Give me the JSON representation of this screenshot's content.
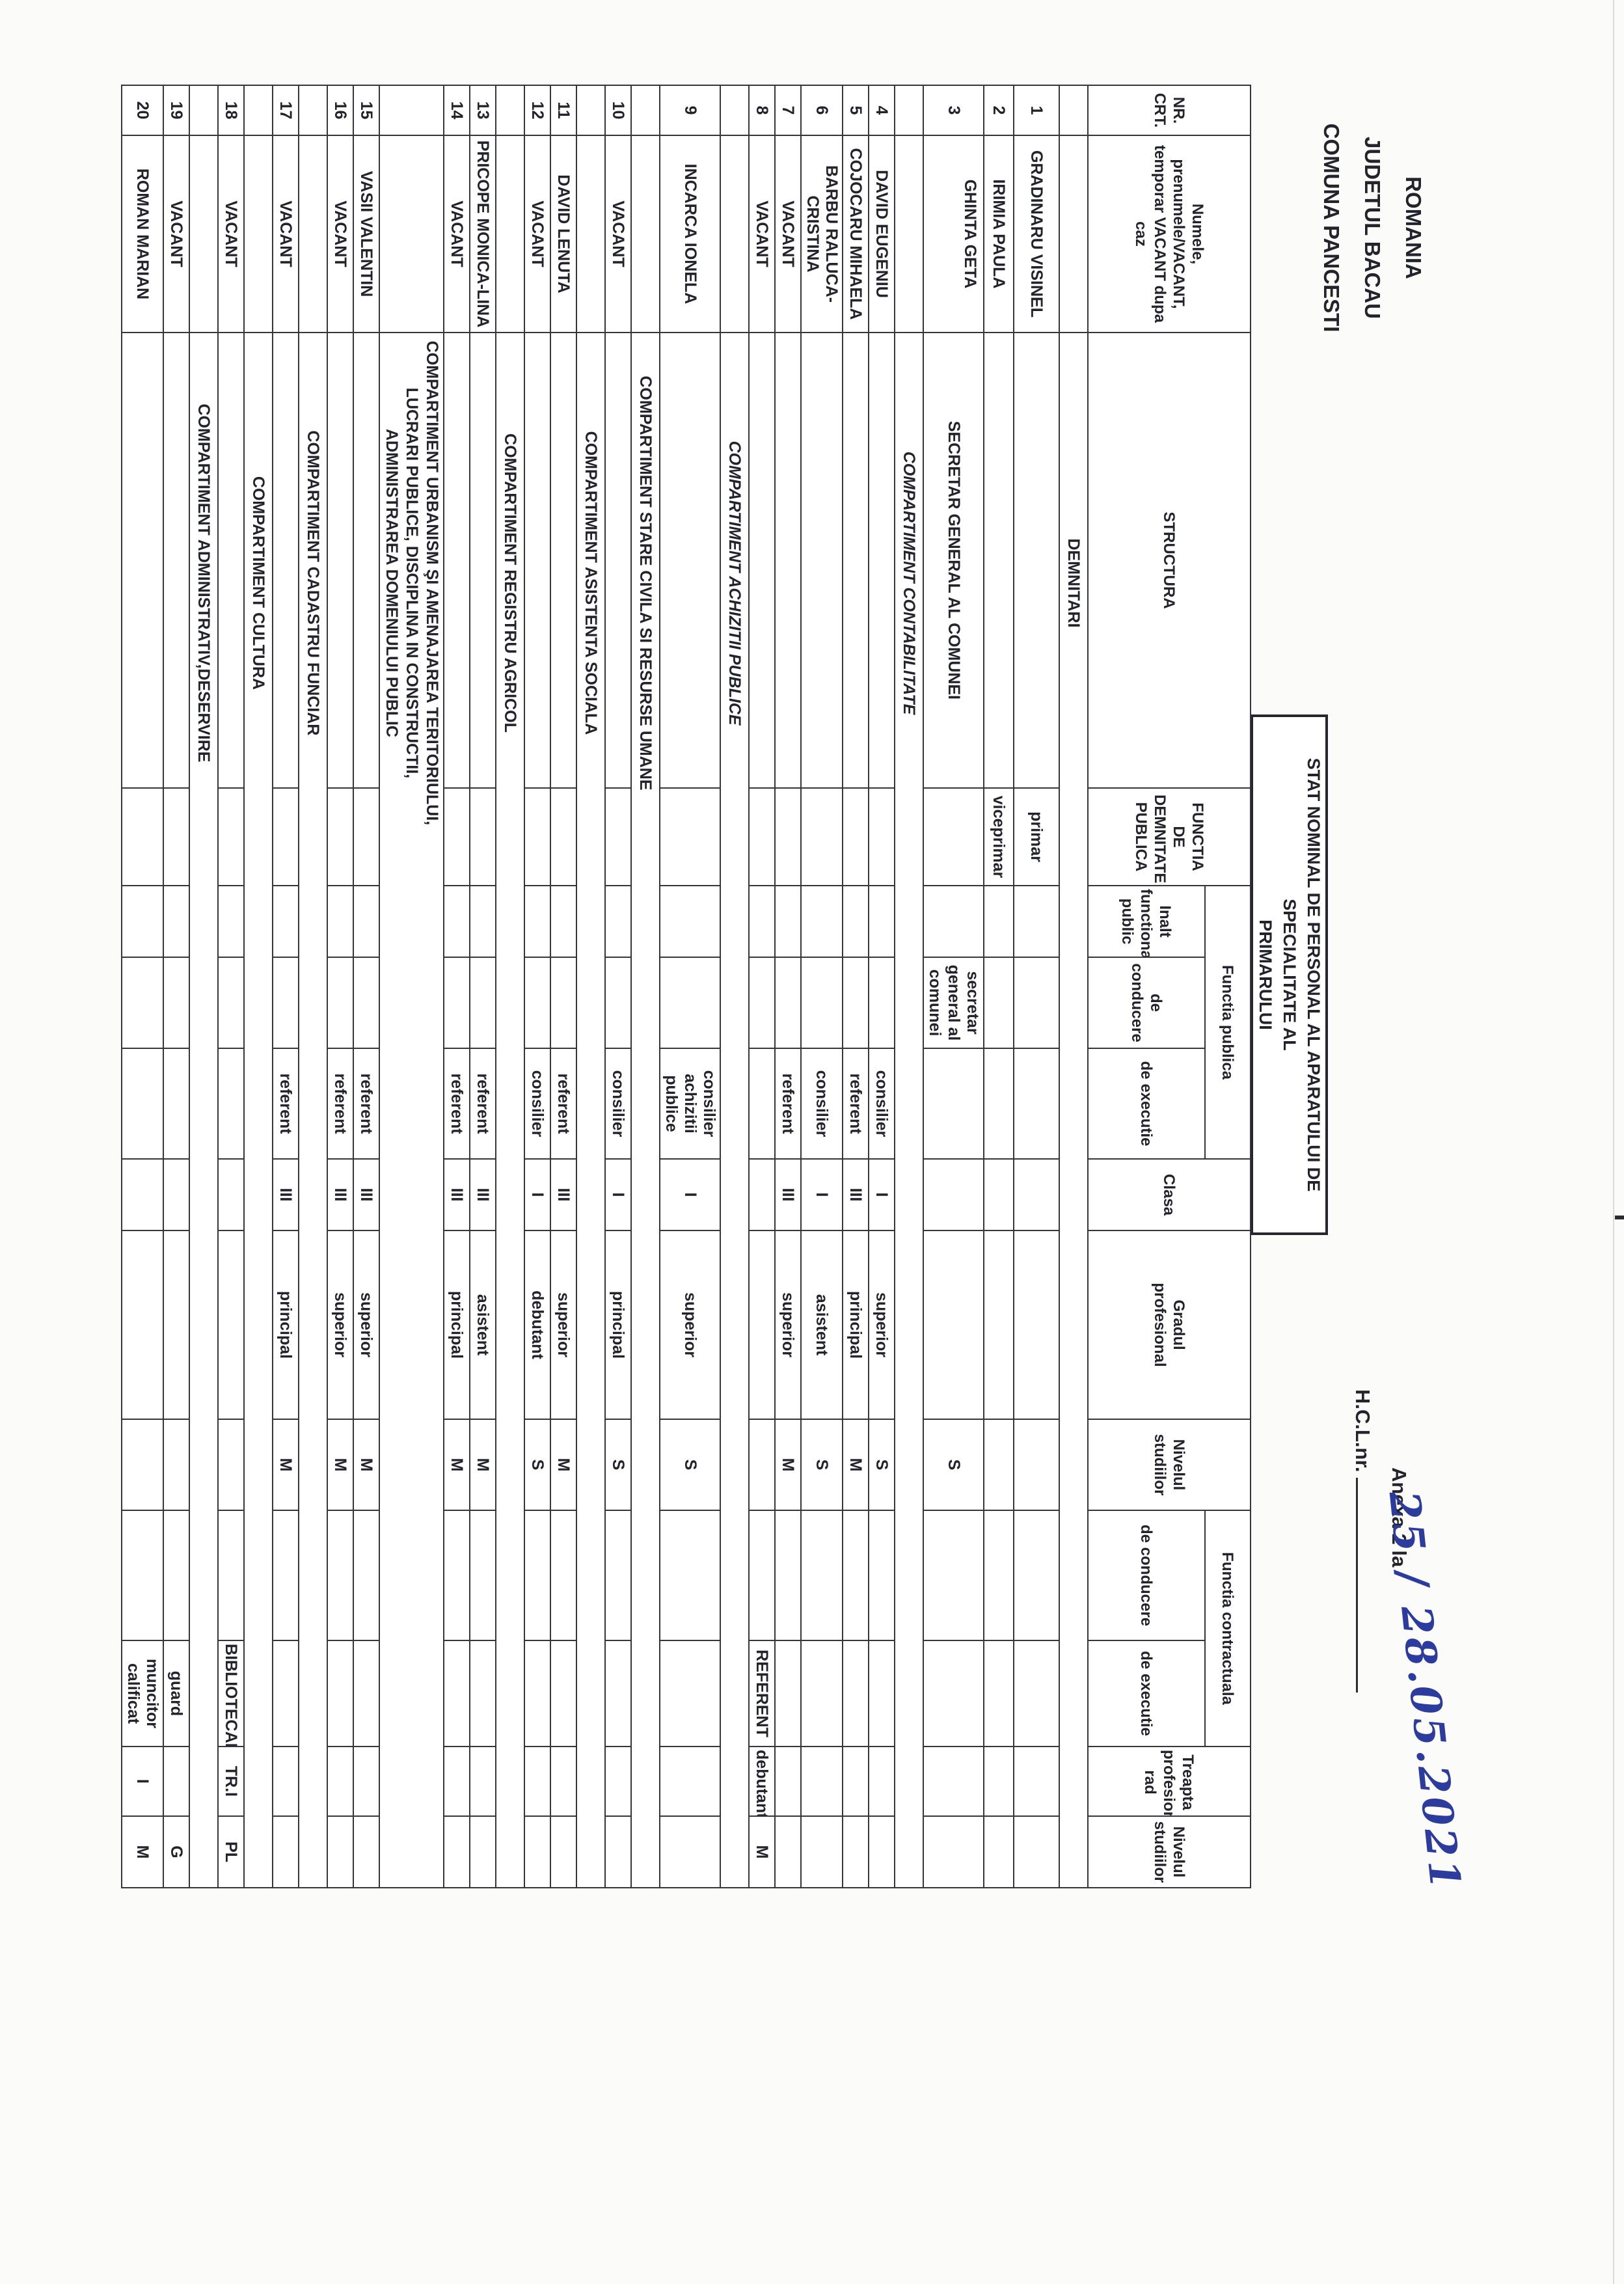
{
  "heading": {
    "country": "ROMANIA",
    "county": "JUDETUL BACAU",
    "commune": "COMUNA PANCESTI"
  },
  "annex": {
    "line1": "Anexa 2 la",
    "line2_printed": "H.C.L.nr.",
    "handwritten": "25 / 28.05.2021",
    "ink_color": "#2c3b9e"
  },
  "title": {
    "line1": "STAT NOMINAL DE PERSONAL AL APARATULUI DE SPECIALITATE AL",
    "line2": "PRIMARULUI"
  },
  "table": {
    "headers": {
      "nr": "NR.\nCRT.",
      "nume": "Numele, prenumele/VACANT, temporar VACANT dupa caz",
      "structura": "STRUCTURA",
      "demnitate": "FUNCTIA DE DEMNITATE PUBLICA",
      "fp_group": "Functia publica",
      "fp_inalt": "Inalt functionar public",
      "fp_conducere": "de conducere",
      "fp_executie": "de executie",
      "clasa": "Clasa",
      "grad": "Gradul profesional",
      "nivel": "Nivelul studiilor",
      "fc_group": "Functia contractuala",
      "fc_conducere": "de conducere",
      "fc_executie": "de executie",
      "treapta": "Treapta profesionala/g rad",
      "fc_nivel": "Nivelul studiilor"
    },
    "rows": [
      {
        "type": "section",
        "label": "DEMNITARI",
        "italic": false
      },
      {
        "type": "person",
        "nr": "1",
        "name": "GRADINARU VISINEL",
        "demnitate": "primar"
      },
      {
        "type": "person",
        "nr": "2",
        "name": "IRIMIA PAULA",
        "demnitate": "viceprimar"
      },
      {
        "type": "person",
        "nr": "3",
        "name": "GHINTA GETA",
        "structura": "SECRETAR GENERAL AL COMUNEI",
        "fp_conducere": "secretar general al comunei",
        "nivel": "S",
        "tall": true
      },
      {
        "type": "section",
        "label": "COMPARTIMENT CONTABILITATE",
        "italic": true
      },
      {
        "type": "person",
        "nr": "4",
        "name": "DAVID EUGENIU",
        "fp_executie": "consilier",
        "clasa": "I",
        "grad": "superior",
        "nivel": "S"
      },
      {
        "type": "person",
        "nr": "5",
        "name": "COJOCARU MIHAELA",
        "fp_executie": "referent",
        "clasa": "III",
        "grad": "principal",
        "nivel": "M"
      },
      {
        "type": "person",
        "nr": "6",
        "name": "BARBU RALUCA-CRISTINA",
        "fp_executie": "consilier",
        "clasa": "I",
        "grad": "asistent",
        "nivel": "S"
      },
      {
        "type": "person",
        "nr": "7",
        "name": "VACANT",
        "fp_executie": "referent",
        "clasa": "III",
        "grad": "superior",
        "nivel": "M"
      },
      {
        "type": "person",
        "nr": "8",
        "name": "VACANT",
        "fc_executie": "REFERENT",
        "treapta": "debutant",
        "fc_nivel": "M"
      },
      {
        "type": "section",
        "label": "COMPARTIMENT ACHIZITII PUBLICE",
        "italic": true
      },
      {
        "type": "person",
        "nr": "9",
        "name": "INCARCA IONELA",
        "fp_executie": "consilier achizitii publice",
        "clasa": "I",
        "grad": "superior",
        "nivel": "S"
      },
      {
        "type": "section",
        "label": "COMPARTIMENT STARE CIVILA SI RESURSE UMANE"
      },
      {
        "type": "person",
        "nr": "10",
        "name": "VACANT",
        "fp_executie": "consilier",
        "clasa": "I",
        "grad": "principal",
        "nivel": "S"
      },
      {
        "type": "section",
        "label": "COMPARTIMENT ASISTENTA SOCIALA"
      },
      {
        "type": "person",
        "nr": "11",
        "name": "DAVID LENUTA",
        "fp_executie": "referent",
        "clasa": "III",
        "grad": "superior",
        "nivel": "M"
      },
      {
        "type": "person",
        "nr": "12",
        "name": "VACANT",
        "fp_executie": "consilier",
        "clasa": "I",
        "grad": "debutant",
        "nivel": "S"
      },
      {
        "type": "section",
        "label": "COMPARTIMENT REGISTRU AGRICOL"
      },
      {
        "type": "person",
        "nr": "13",
        "name": "PRICOPE MONICA-LINA",
        "fp_executie": "referent",
        "clasa": "III",
        "grad": "asistent",
        "nivel": "M"
      },
      {
        "type": "person",
        "nr": "14",
        "name": "VACANT",
        "fp_executie": "referent",
        "clasa": "III",
        "grad": "principal",
        "nivel": "M"
      },
      {
        "type": "section",
        "label": "COMPARTIMENT URBANISM ŞI AMENAJAREA TERITORIULUI, LUCRARI PUBLICE, DISCIPLINA IN CONSTRUCTII, ADMINISTRAREA DOMENIULUI PUBLIC"
      },
      {
        "type": "person",
        "nr": "15",
        "name": "VASII VALENTIN",
        "fp_executie": "referent",
        "clasa": "III",
        "grad": "superior",
        "nivel": "M"
      },
      {
        "type": "person",
        "nr": "16",
        "name": "VACANT",
        "fp_executie": "referent",
        "clasa": "III",
        "grad": "superior",
        "nivel": "M"
      },
      {
        "type": "section",
        "label": "COMPARTIMENT CADASTRU FUNCIAR"
      },
      {
        "type": "person",
        "nr": "17",
        "name": "VACANT",
        "fp_executie": "referent",
        "clasa": "III",
        "grad": "principal",
        "nivel": "M"
      },
      {
        "type": "section",
        "label": "COMPARTIMENT CULTURA"
      },
      {
        "type": "person",
        "nr": "18",
        "name": "VACANT",
        "fc_executie": "BIBLIOTECAR",
        "treapta": "TR.I",
        "fc_nivel": "PL"
      },
      {
        "type": "section",
        "label": "COMPARTIMENT ADMINISTRATIV,DESERVIRE"
      },
      {
        "type": "person",
        "nr": "19",
        "name": "VACANT",
        "fc_executie": "guard",
        "fc_nivel": "G"
      },
      {
        "type": "person",
        "nr": "20",
        "name": "ROMAN MARIAN",
        "fc_executie": "muncitor calificat",
        "treapta": "I",
        "fc_nivel": "M"
      }
    ]
  }
}
